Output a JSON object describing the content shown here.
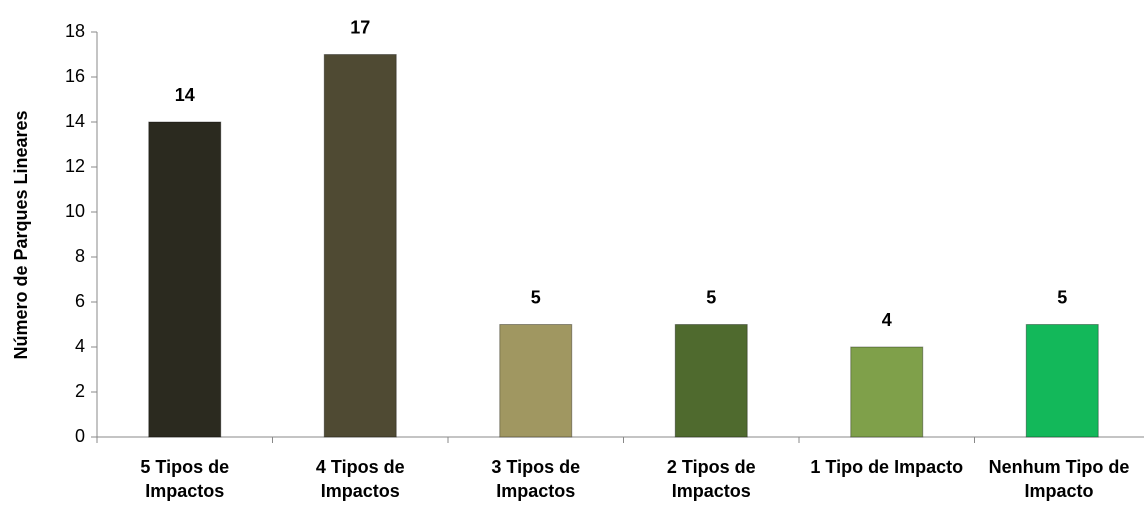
{
  "chart_data": {
    "type": "bar",
    "y_axis_label": "Número de Parques Lineares",
    "categories": [
      "5 Tipos de Impactos",
      "4 Tipos de Impactos",
      "3 Tipos de Impactos",
      "2 Tipos de Impactos",
      "1 Tipo de Impacto",
      "Nenhum Tipo de Impacto"
    ],
    "values": [
      14,
      17,
      5,
      5,
      4,
      5
    ],
    "colors": [
      "#2b2a1f",
      "#4f4a33",
      "#a09761",
      "#4f6a2e",
      "#7fa04a",
      "#13b85a"
    ],
    "ylim": [
      0,
      18
    ],
    "yticks": [
      0,
      2,
      4,
      6,
      8,
      10,
      12,
      14,
      16,
      18
    ],
    "grid": false
  }
}
